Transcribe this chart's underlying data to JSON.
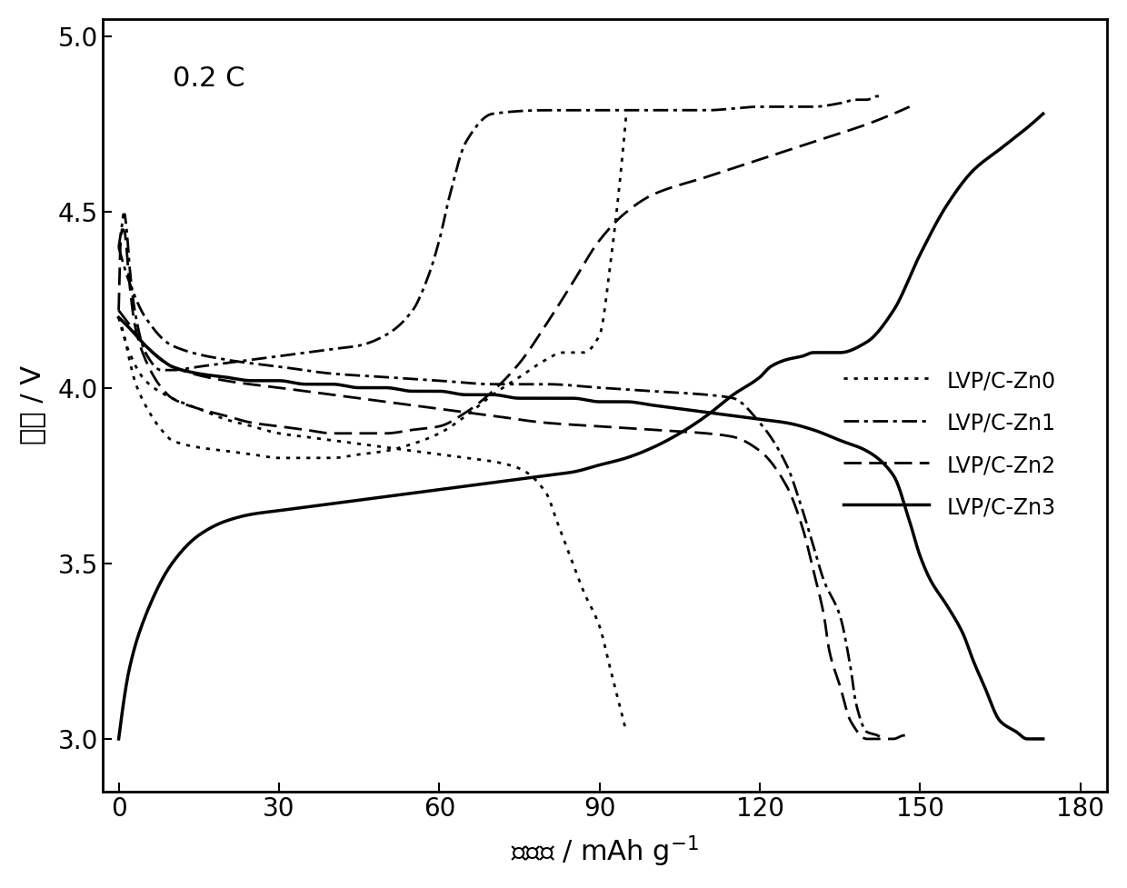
{
  "title_annotation": "0.2 C",
  "xlabel": "比容量 / mAh g⁻¹",
  "ylabel": "电压 / V",
  "xlim": [
    -3,
    185
  ],
  "ylim": [
    2.85,
    5.05
  ],
  "xticks": [
    0,
    30,
    60,
    90,
    120,
    150,
    180
  ],
  "yticks": [
    3.0,
    3.5,
    4.0,
    4.5,
    5.0
  ],
  "line_color": "#000000",
  "line_width": 2.0,
  "curves": {
    "Zn0_charge": {
      "x": [
        0,
        1,
        2,
        3,
        5,
        8,
        10,
        15,
        20,
        25,
        30,
        35,
        40,
        45,
        50,
        55,
        60,
        65,
        70,
        75,
        80,
        83,
        85,
        87,
        90,
        92,
        95
      ],
      "y": [
        4.2,
        4.15,
        4.08,
        4.02,
        3.95,
        3.88,
        3.85,
        3.83,
        3.82,
        3.81,
        3.8,
        3.8,
        3.8,
        3.81,
        3.82,
        3.84,
        3.87,
        3.92,
        3.98,
        4.03,
        4.08,
        4.1,
        4.1,
        4.1,
        4.15,
        4.35,
        4.78
      ]
    },
    "Zn0_discharge": {
      "x": [
        0,
        2,
        5,
        10,
        15,
        20,
        25,
        30,
        35,
        40,
        45,
        50,
        55,
        60,
        65,
        70,
        75,
        80,
        82,
        85,
        87,
        90,
        92,
        95
      ],
      "y": [
        4.2,
        4.1,
        4.02,
        3.97,
        3.94,
        3.91,
        3.89,
        3.87,
        3.86,
        3.85,
        3.84,
        3.83,
        3.82,
        3.81,
        3.8,
        3.79,
        3.77,
        3.7,
        3.62,
        3.5,
        3.42,
        3.32,
        3.2,
        3.02
      ]
    },
    "Zn1_charge": {
      "x": [
        0,
        0.5,
        1,
        1.5,
        2,
        3,
        5,
        8,
        10,
        15,
        20,
        25,
        30,
        35,
        40,
        45,
        50,
        55,
        58,
        60,
        62,
        65,
        70,
        80,
        90,
        100,
        110,
        120,
        130,
        135,
        138,
        140,
        142,
        143
      ],
      "y": [
        4.4,
        4.45,
        4.5,
        4.45,
        4.35,
        4.22,
        4.1,
        4.05,
        4.05,
        4.06,
        4.07,
        4.08,
        4.09,
        4.1,
        4.11,
        4.12,
        4.15,
        4.22,
        4.32,
        4.42,
        4.55,
        4.7,
        4.78,
        4.79,
        4.79,
        4.79,
        4.79,
        4.8,
        4.8,
        4.81,
        4.82,
        4.82,
        4.83,
        4.83
      ]
    },
    "Zn1_discharge": {
      "x": [
        0,
        2,
        5,
        10,
        20,
        30,
        40,
        50,
        60,
        70,
        80,
        90,
        100,
        110,
        115,
        120,
        125,
        128,
        130,
        132,
        135,
        137,
        138,
        140,
        142,
        143
      ],
      "y": [
        4.4,
        4.3,
        4.2,
        4.12,
        4.08,
        4.06,
        4.04,
        4.03,
        4.02,
        4.01,
        4.01,
        4.0,
        3.99,
        3.98,
        3.97,
        3.9,
        3.78,
        3.65,
        3.55,
        3.45,
        3.35,
        3.2,
        3.1,
        3.02,
        3.01,
        3.0
      ]
    },
    "Zn2_charge": {
      "x": [
        0,
        0.5,
        1,
        2,
        3,
        5,
        8,
        10,
        15,
        20,
        25,
        30,
        35,
        40,
        45,
        50,
        55,
        60,
        65,
        70,
        75,
        80,
        85,
        90,
        95,
        100,
        110,
        120,
        130,
        140,
        145,
        148
      ],
      "y": [
        4.22,
        4.45,
        4.45,
        4.3,
        4.18,
        4.08,
        4.0,
        3.97,
        3.94,
        3.92,
        3.9,
        3.89,
        3.88,
        3.87,
        3.87,
        3.87,
        3.88,
        3.89,
        3.93,
        3.99,
        4.07,
        4.18,
        4.3,
        4.42,
        4.5,
        4.55,
        4.6,
        4.65,
        4.7,
        4.75,
        4.78,
        4.8
      ]
    },
    "Zn2_discharge": {
      "x": [
        0,
        2,
        5,
        10,
        20,
        30,
        40,
        50,
        60,
        70,
        80,
        90,
        100,
        110,
        115,
        120,
        125,
        128,
        130,
        132,
        133,
        135,
        137,
        140,
        142,
        145,
        147,
        148
      ],
      "y": [
        4.22,
        4.18,
        4.12,
        4.06,
        4.02,
        4.0,
        3.98,
        3.96,
        3.94,
        3.92,
        3.9,
        3.89,
        3.88,
        3.87,
        3.86,
        3.82,
        3.72,
        3.6,
        3.48,
        3.35,
        3.25,
        3.15,
        3.05,
        3.0,
        3.0,
        3.0,
        3.01,
        3.01
      ]
    },
    "Zn3_charge": {
      "x": [
        0,
        2,
        5,
        10,
        15,
        20,
        25,
        30,
        35,
        40,
        45,
        50,
        55,
        60,
        65,
        70,
        75,
        80,
        85,
        90,
        95,
        100,
        105,
        110,
        115,
        120,
        122,
        125,
        128,
        130,
        132,
        135,
        140,
        145,
        150,
        155,
        160,
        165,
        170,
        173
      ],
      "y": [
        3.0,
        3.2,
        3.35,
        3.5,
        3.58,
        3.62,
        3.64,
        3.65,
        3.66,
        3.67,
        3.68,
        3.69,
        3.7,
        3.71,
        3.72,
        3.73,
        3.74,
        3.75,
        3.76,
        3.78,
        3.8,
        3.83,
        3.87,
        3.92,
        3.98,
        4.03,
        4.06,
        4.08,
        4.09,
        4.1,
        4.1,
        4.1,
        4.13,
        4.22,
        4.38,
        4.52,
        4.62,
        4.68,
        4.74,
        4.78
      ]
    },
    "Zn3_discharge": {
      "x": [
        0,
        2,
        5,
        8,
        10,
        15,
        20,
        25,
        30,
        35,
        40,
        45,
        50,
        55,
        60,
        65,
        70,
        75,
        80,
        85,
        90,
        95,
        100,
        105,
        110,
        115,
        120,
        125,
        130,
        135,
        140,
        145,
        148,
        150,
        152,
        155,
        158,
        160,
        162,
        165,
        168,
        170,
        172,
        173
      ],
      "y": [
        4.2,
        4.17,
        4.12,
        4.08,
        4.06,
        4.04,
        4.03,
        4.02,
        4.02,
        4.01,
        4.01,
        4.0,
        4.0,
        3.99,
        3.99,
        3.98,
        3.98,
        3.97,
        3.97,
        3.97,
        3.96,
        3.96,
        3.95,
        3.94,
        3.93,
        3.92,
        3.91,
        3.9,
        3.88,
        3.85,
        3.82,
        3.75,
        3.62,
        3.52,
        3.45,
        3.38,
        3.3,
        3.22,
        3.15,
        3.05,
        3.02,
        3.0,
        3.0,
        3.0
      ]
    }
  }
}
